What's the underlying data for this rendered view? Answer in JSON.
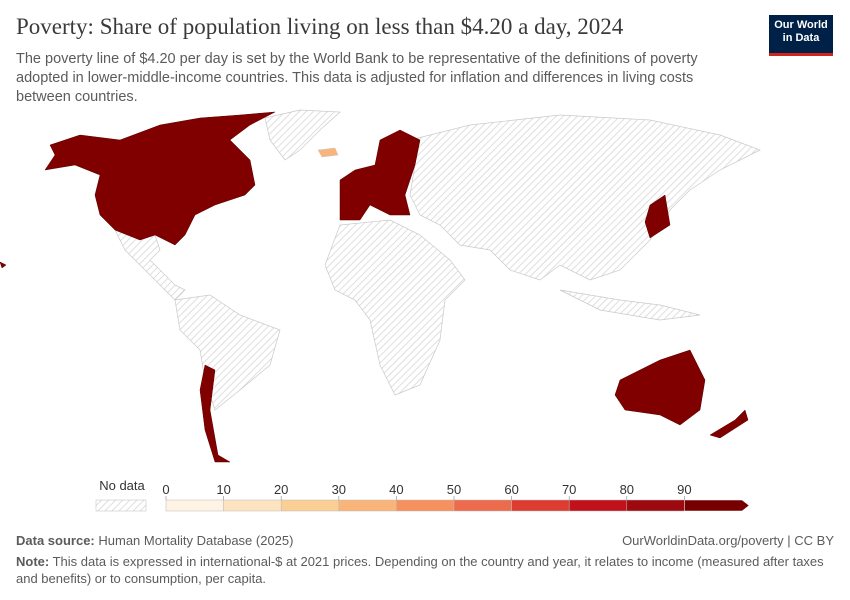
{
  "chart_data": {
    "type": "map",
    "title": "Poverty: Share of population living on less than $4.20 a day, 2024",
    "subtitle": "The poverty line of $4.20 per day is set by the World Bank to be representative of the definitions of poverty adopted in lower-middle-income countries. This data is adjusted for inflation and differences in living costs between countries.",
    "logo": "Our World in Data",
    "legend": {
      "no_data_label": "No data",
      "ticks": [
        0,
        10,
        20,
        30,
        40,
        50,
        60,
        70,
        80,
        90
      ],
      "colors": [
        "#fff3e4",
        "#fde3c0",
        "#fbce96",
        "#f9b47a",
        "#f6905e",
        "#ec6b4d",
        "#dc3d30",
        "#c1121b",
        "#9c0a10",
        "#760000"
      ]
    },
    "source_label": "Data source:",
    "source": "Human Mortality Database (2025)",
    "url": "OurWorldinData.org/poverty | CC BY",
    "note_label": "Note:",
    "note": "This data is expressed in international-$ at 2021 prices. Depending on the country and year, it relates to income (measured after taxes and benefits) or to consumption, per capita."
  }
}
